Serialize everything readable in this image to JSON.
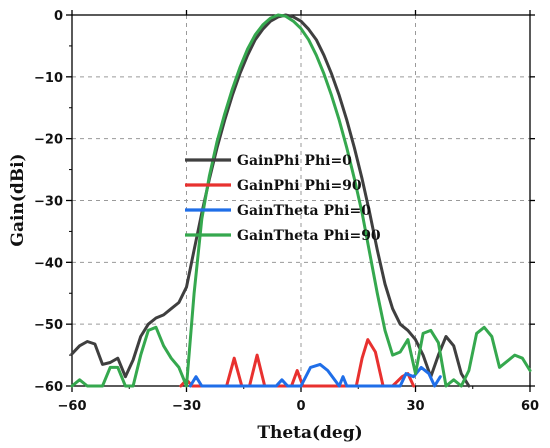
{
  "chart_data": {
    "type": "line",
    "xlabel": "Theta(deg)",
    "ylabel": "Gain(dBi)",
    "xlim": [
      -60,
      60
    ],
    "ylim": [
      -60,
      0
    ],
    "xticks": [
      -60,
      -30,
      0,
      30,
      60
    ],
    "yticks": [
      0,
      -10,
      -20,
      -30,
      -40,
      -50,
      -60
    ],
    "grid": "dashed",
    "legend_position": "center-left",
    "series": [
      {
        "name": "GainPhi Phi=0",
        "color": "#3f3f3f",
        "x": [
          -60,
          -58,
          -56,
          -54,
          -52,
          -50,
          -48,
          -46,
          -44,
          -42,
          -40,
          -38,
          -36,
          -34,
          -32,
          -30,
          -28,
          -26,
          -24,
          -22,
          -20,
          -18,
          -16,
          -14,
          -12,
          -10,
          -8,
          -6,
          -4,
          -2,
          0,
          2,
          4,
          6,
          8,
          10,
          12,
          14,
          16,
          18,
          20,
          22,
          24,
          26,
          28,
          30,
          32,
          34,
          36,
          38,
          40,
          42,
          44
        ],
        "y": [
          -54.8,
          -53.5,
          -52.8,
          -53.2,
          -56.5,
          -56.2,
          -55.5,
          -58.5,
          -55.8,
          -52,
          -50,
          -49,
          -48.5,
          -47.5,
          -46.5,
          -44,
          -38,
          -32,
          -26.5,
          -21.5,
          -17,
          -13,
          -9.5,
          -6.5,
          -4,
          -2.3,
          -1,
          -0.3,
          0,
          -0.3,
          -1,
          -2.3,
          -4,
          -6.5,
          -9.5,
          -13,
          -17,
          -21.5,
          -26.5,
          -32,
          -38,
          -43.5,
          -47.5,
          -50,
          -51,
          -52.5,
          -55,
          -58.5,
          -55,
          -52,
          -53.5,
          -58,
          -60
        ]
      },
      {
        "name": "GainPhi Phi=90",
        "color": "#e8312f",
        "x": [
          -31.5,
          -30,
          -28.5,
          -19.5,
          -17.5,
          -15.5,
          -13.5,
          -11.5,
          -9.5,
          -7.5,
          -2.5,
          -1,
          0.5,
          14.5,
          16,
          17.5,
          19.5,
          21.5,
          23.5,
          24,
          26.5,
          28,
          29.5
        ],
        "y": [
          -60,
          -59,
          -60,
          -60,
          -55.5,
          -60,
          -60,
          -55,
          -60,
          -60,
          -60,
          -57.5,
          -60,
          -60,
          -55.5,
          -52.5,
          -54.5,
          -60,
          -60,
          -60,
          -58.5,
          -58,
          -60
        ]
      },
      {
        "name": "GainTheta Phi=0",
        "color": "#1f6ee8",
        "x": [
          -29,
          -27.5,
          -26,
          -6.5,
          -5,
          -3.5,
          0,
          2.5,
          5,
          7,
          10,
          11,
          12,
          26,
          27.5,
          29.5,
          31.5,
          33.5,
          35,
          36.5
        ],
        "y": [
          -60,
          -58.5,
          -60,
          -60,
          -59,
          -60,
          -60,
          -57,
          -56.5,
          -57.5,
          -60,
          -58.5,
          -60,
          -60,
          -58,
          -58.5,
          -57,
          -58,
          -60,
          -58.5
        ]
      },
      {
        "name": "GainTheta Phi=90",
        "color": "#35a84e",
        "x": [
          -60,
          -58,
          -56,
          -54,
          -52,
          -50,
          -48,
          -46,
          -44,
          -42,
          -40,
          -38,
          -36,
          -34,
          -32,
          -30,
          -28,
          -26,
          -24,
          -22,
          -20,
          -18,
          -16,
          -14,
          -12,
          -10,
          -8,
          -6,
          -4,
          -2,
          0,
          2,
          4,
          6,
          8,
          10,
          12,
          14,
          16,
          18,
          20,
          22,
          24,
          26,
          28,
          30,
          32,
          34,
          36,
          38,
          40,
          42,
          44,
          46,
          48,
          50,
          52,
          54,
          56,
          58,
          60
        ],
        "y": [
          -60,
          -59,
          -60,
          -60,
          -60,
          -57,
          -57,
          -60,
          -60,
          -55,
          -51,
          -50.5,
          -53.5,
          -55.5,
          -57,
          -60,
          -45,
          -33,
          -26,
          -20.5,
          -16,
          -12,
          -8.5,
          -5.5,
          -3.2,
          -1.6,
          -0.5,
          0,
          -0.2,
          -1,
          -2.2,
          -4,
          -6.5,
          -9.5,
          -13,
          -17,
          -21.5,
          -26.5,
          -32,
          -38.5,
          -45,
          -51,
          -55,
          -54.5,
          -52.5,
          -58,
          -51.5,
          -51,
          -53,
          -60,
          -59,
          -60,
          -57.5,
          -51.5,
          -50.5,
          -52,
          -57,
          -56,
          -55,
          -55.5,
          -57.5
        ]
      }
    ]
  }
}
